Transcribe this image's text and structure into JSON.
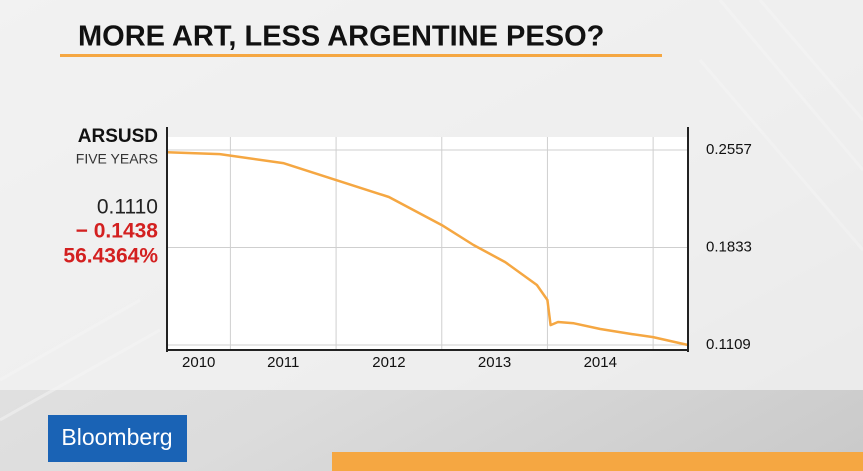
{
  "chart_data": {
    "type": "line",
    "title": "MORE ART, LESS ARGENTINE PESO?",
    "ticker": "ARSUSD",
    "period": "FIVE YEARS",
    "last": "0.1110",
    "change": "− 0.1438",
    "change_percent": "56.4364%",
    "x": [
      2010.4,
      2010.9,
      2011.5,
      2012.0,
      2012.5,
      2013.0,
      2013.3,
      2013.6,
      2013.9,
      2014.0,
      2014.03,
      2014.1,
      2014.25,
      2014.5,
      2014.8,
      2015.0,
      2015.33
    ],
    "series": [
      {
        "name": "ARSUSD",
        "color": "#f5a742",
        "values": [
          0.254,
          0.2527,
          0.246,
          0.2334,
          0.2208,
          0.2,
          0.1852,
          0.1725,
          0.1555,
          0.1443,
          0.1257,
          0.128,
          0.127,
          0.1228,
          0.119,
          0.1168,
          0.1109
        ]
      }
    ],
    "xlim": [
      2010.4,
      2015.33
    ],
    "xticks": [
      2010,
      2011,
      2012,
      2013,
      2014
    ],
    "ylim": [
      0.1072,
      0.2654
    ],
    "yticks": [
      0.2557,
      0.1833,
      0.1109
    ],
    "grid": true,
    "brand": "Bloomberg"
  }
}
